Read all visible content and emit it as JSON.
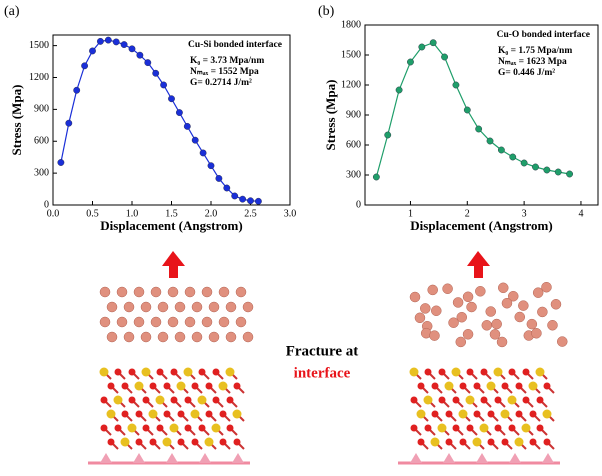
{
  "chart_data": [
    {
      "type": "line",
      "panel_label": "(a)",
      "title": "Cu-Si bonded interface",
      "annotations": [
        "K₀ = 3.73 Mpa/nm",
        "Nₘₐₓ = 1552 Mpa",
        "G= 0.2714 J/m²"
      ],
      "xlabel": "Displacement (Angstrom)",
      "ylabel": "Stress (Mpa)",
      "color": "#1a2fd8",
      "x": [
        0.1,
        0.2,
        0.3,
        0.4,
        0.5,
        0.6,
        0.7,
        0.8,
        0.9,
        1.0,
        1.1,
        1.2,
        1.3,
        1.4,
        1.5,
        1.6,
        1.7,
        1.8,
        1.9,
        2.0,
        2.1,
        2.2,
        2.3,
        2.4,
        2.5,
        2.6
      ],
      "values": [
        400,
        770,
        1080,
        1310,
        1450,
        1540,
        1552,
        1535,
        1510,
        1470,
        1410,
        1340,
        1240,
        1130,
        1000,
        870,
        740,
        610,
        490,
        370,
        250,
        160,
        85,
        55,
        40,
        35
      ],
      "xlim": [
        0,
        3
      ],
      "xticks": [
        {
          "value": 0,
          "label": "0.0"
        },
        0.5,
        {
          "value": 1,
          "label": "1.0"
        },
        1.5,
        {
          "value": 2,
          "label": "2.0"
        },
        2.5,
        {
          "value": 3,
          "label": "3.0"
        }
      ],
      "ylim": [
        0,
        1600
      ],
      "yticks": [
        0,
        300,
        600,
        900,
        1200,
        1500
      ]
    },
    {
      "type": "line",
      "panel_label": "(b)",
      "title": "Cu-O bonded interface",
      "annotations": [
        "K₀ = 1.75 Mpa/nm",
        "Nₘₐₓ = 1623 Mpa",
        "G= 0.446 J/m²"
      ],
      "xlabel": "Displacement (Angstrom)",
      "ylabel": "Stress (Mpa)",
      "color": "#1f9e6a",
      "x": [
        0.4,
        0.6,
        0.8,
        1.0,
        1.2,
        1.4,
        1.6,
        1.8,
        2.0,
        2.2,
        2.4,
        2.6,
        2.8,
        3.0,
        3.2,
        3.4,
        3.6,
        3.8
      ],
      "values": [
        280,
        700,
        1150,
        1430,
        1580,
        1623,
        1480,
        1200,
        950,
        760,
        640,
        550,
        480,
        420,
        380,
        350,
        330,
        310
      ],
      "xlim": [
        0.2,
        4.3
      ],
      "xticks": [
        1,
        2,
        3,
        4
      ],
      "ylim": [
        0,
        1800
      ],
      "yticks": [
        0,
        300,
        600,
        900,
        1200,
        1500,
        1800
      ]
    }
  ],
  "figure_text": {
    "fracture_line1": "Fracture at",
    "fracture_line2": "interface"
  }
}
